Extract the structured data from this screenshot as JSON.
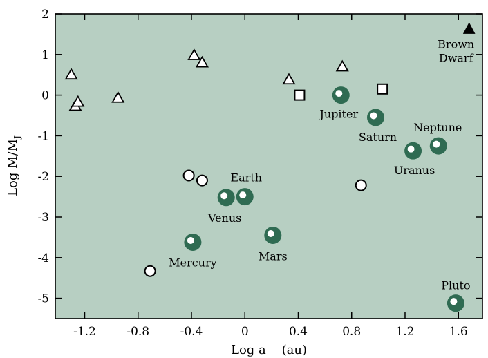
{
  "chart_data": {
    "type": "scatter",
    "title": "",
    "xlabel": "Log a    (au)",
    "ylabel": "Log M/M",
    "ylabel_subscript": "J",
    "xlim": [
      -1.42,
      1.78
    ],
    "ylim": [
      -5.5,
      2.0
    ],
    "xticks": [
      -1.2,
      -0.8,
      -0.4,
      0,
      0.4,
      0.8,
      1.2,
      1.6
    ],
    "xtick_labels": [
      "-1.2",
      "-0.8",
      "-0.4",
      "0",
      "0.4",
      "0.8",
      "1.2",
      "1.6"
    ],
    "yticks": [
      2,
      1,
      0,
      -1,
      -2,
      -3,
      -4,
      -5
    ],
    "ytick_labels": [
      "2",
      "1",
      "0",
      "-1",
      "-2",
      "-3",
      "-4",
      "-5"
    ],
    "grid": false,
    "colors": {
      "background": "#b7cfc2",
      "planet_fill": "#2f6b52",
      "marker_stroke": "#000000"
    },
    "series": [
      {
        "marker": "open-triangle",
        "points": [
          {
            "x": -1.3,
            "y": 0.5
          },
          {
            "x": -1.27,
            "y": -0.27
          },
          {
            "x": -1.25,
            "y": -0.17
          },
          {
            "x": -0.95,
            "y": -0.07
          },
          {
            "x": -0.38,
            "y": 0.98
          },
          {
            "x": -0.32,
            "y": 0.8
          },
          {
            "x": 0.33,
            "y": 0.38
          },
          {
            "x": 0.73,
            "y": 0.7
          }
        ]
      },
      {
        "marker": "open-square",
        "points": [
          {
            "x": 0.41,
            "y": 0.0
          },
          {
            "x": 1.03,
            "y": 0.15
          }
        ]
      },
      {
        "marker": "open-circle",
        "points": [
          {
            "x": -0.42,
            "y": -1.98
          },
          {
            "x": -0.32,
            "y": -2.1
          },
          {
            "x": 0.87,
            "y": -2.22
          },
          {
            "x": -0.71,
            "y": -4.33
          }
        ]
      },
      {
        "marker": "planet",
        "points": [
          {
            "x": -0.39,
            "y": -3.62,
            "label": "Mercury"
          },
          {
            "x": -0.14,
            "y": -2.52,
            "label": "Venus"
          },
          {
            "x": 0.0,
            "y": -2.5,
            "label": "Earth"
          },
          {
            "x": 0.21,
            "y": -3.45,
            "label": "Mars"
          },
          {
            "x": 0.72,
            "y": 0.0,
            "label": "Jupiter"
          },
          {
            "x": 0.98,
            "y": -0.55,
            "label": "Saturn"
          },
          {
            "x": 1.26,
            "y": -1.37,
            "label": "Uranus"
          },
          {
            "x": 1.45,
            "y": -1.25,
            "label": "Neptune"
          },
          {
            "x": 1.58,
            "y": -5.12,
            "label": "Pluto"
          }
        ]
      },
      {
        "marker": "filled-triangle",
        "points": [
          {
            "x": 1.68,
            "y": 1.62,
            "label": "Brown Dwarf"
          }
        ]
      }
    ]
  }
}
